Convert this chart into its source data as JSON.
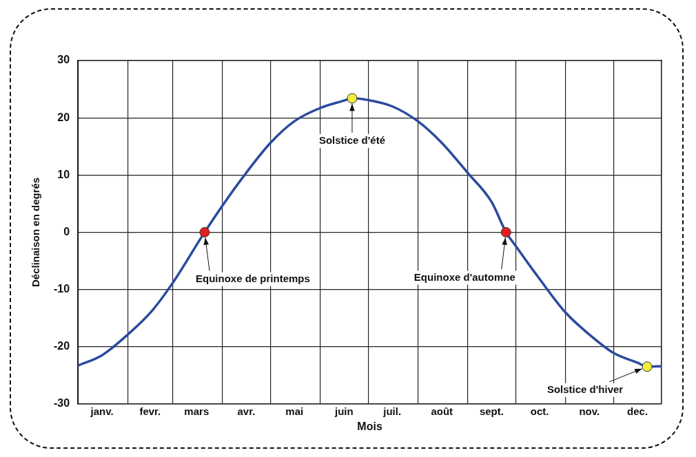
{
  "chart_data": {
    "type": "line",
    "xlabel": "Mois",
    "ylabel": "Déclinaison en degrés",
    "xlim": [
      "--01-01",
      "--12-31"
    ],
    "xticks": [
      {
        "value": "--01-01",
        "label": null
      },
      {
        "value": "--01-16",
        "label": "janv."
      },
      {
        "value": "--02-01",
        "label": null
      },
      {
        "value": "--02-15",
        "label": "fevr."
      },
      {
        "value": "--03-01",
        "label": null
      },
      {
        "value": "--03-16",
        "label": "mars"
      },
      {
        "value": "--04-01",
        "label": null
      },
      {
        "value": "--04-16",
        "label": "avr."
      },
      {
        "value": "--05-01",
        "label": null
      },
      {
        "value": "--05-16",
        "label": "mai"
      },
      {
        "value": "--06-01",
        "label": null
      },
      {
        "value": "--06-16",
        "label": "juin"
      },
      {
        "value": "--07-01",
        "label": null
      },
      {
        "value": "--07-16",
        "label": "juil."
      },
      {
        "value": "--08-01",
        "label": null
      },
      {
        "value": "--08-16",
        "label": "août"
      },
      {
        "value": "--09-01",
        "label": null
      },
      {
        "value": "--09-16",
        "label": "sept."
      },
      {
        "value": "--10-01",
        "label": null
      },
      {
        "value": "--10-16",
        "label": "oct."
      },
      {
        "value": "--11-01",
        "label": null
      },
      {
        "value": "--11-16",
        "label": "nov."
      },
      {
        "value": "--12-01",
        "label": null
      },
      {
        "value": "--12-16",
        "label": "dec."
      },
      {
        "value": "--12-31",
        "label": null
      }
    ],
    "ylim": [
      -30,
      30
    ],
    "yticks": [
      -30,
      -20,
      -10,
      0,
      10,
      20,
      30
    ],
    "grid": true,
    "marker": "none",
    "series": [
      {
        "color": "#2b4a9e",
        "x": [
          "--01-01",
          "--01-16",
          "--02-01",
          "--02-16",
          "--03-01",
          "--03-21",
          "--04-01",
          "--04-16",
          "--05-01",
          "--05-16",
          "--06-01",
          "--06-16",
          "--06-21",
          "--07-01",
          "--07-16",
          "--08-01",
          "--08-16",
          "--09-01",
          "--09-16",
          "--09-25",
          "--10-01",
          "--10-16",
          "--11-01",
          "--11-16",
          "--12-01",
          "--12-16",
          "--12-22",
          "--12-31"
        ],
        "values": [
          -23.3,
          -21.5,
          -17.9,
          -13.8,
          -8.9,
          0,
          4.6,
          10.4,
          15.6,
          19.4,
          21.7,
          23,
          23.4,
          23.1,
          22,
          19.4,
          15.6,
          10.4,
          5.3,
          0,
          -2.4,
          -8.2,
          -14,
          -17.9,
          -21.1,
          -22.8,
          -23.5,
          -23.4
        ]
      },
      {
        "type": "scatter",
        "marker": "circle",
        "x": [
          "--03-21",
          "--06-21",
          "--09-25",
          "--12-22"
        ],
        "values": [
          0,
          23.4,
          0,
          -23.5
        ],
        "colors": [
          "#e02020",
          "#f2ec3a",
          "#e02020",
          "#f2ec3a"
        ]
      }
    ],
    "annotations": [
      {
        "text": "Equinoxe de printemps",
        "x": "--03-21",
        "y": 0
      },
      {
        "text": "Solstice d'été",
        "x": "--06-21",
        "y": 23.4
      },
      {
        "text": "Equinoxe d'automne",
        "x": "--09-25",
        "y": 0
      },
      {
        "text": "Solstice d'hiver",
        "x": "--12-22",
        "y": -23.5
      }
    ]
  }
}
